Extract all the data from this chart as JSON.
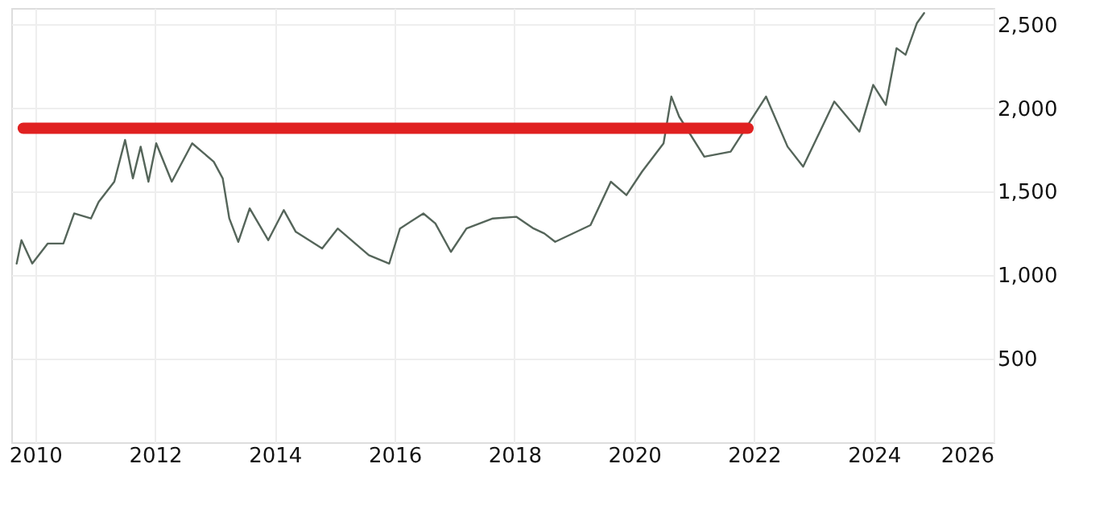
{
  "chart_data": {
    "type": "line",
    "grid": true,
    "xlim": [
      2009.6,
      2026
    ],
    "xticks": [
      2010,
      2012,
      2014,
      2016,
      2018,
      2020,
      2022,
      2024,
      2026
    ],
    "ylim": [
      0,
      2600
    ],
    "yticks": [
      500,
      {
        "value": 1000,
        "label": "1,000"
      },
      {
        "value": 1500,
        "label": "1,500"
      },
      {
        "value": 2000,
        "label": "2,000"
      },
      {
        "value": 2500,
        "label": "2,500"
      }
    ],
    "series": [
      {
        "color": "#55655a",
        "x": [
          2009.69,
          2009.77,
          2009.95,
          2010.21,
          2010.47,
          2010.65,
          2010.93,
          2011.06,
          2011.32,
          2011.5,
          2011.63,
          2011.76,
          2011.89,
          2012.02,
          2012.28,
          2012.62,
          2012.98,
          2013.13,
          2013.24,
          2013.39,
          2013.58,
          2013.89,
          2014.15,
          2014.35,
          2014.79,
          2015.05,
          2015.57,
          2015.91,
          2016.09,
          2016.48,
          2016.68,
          2016.94,
          2017.2,
          2017.64,
          2018.03,
          2018.32,
          2018.5,
          2018.68,
          2019.27,
          2019.61,
          2019.87,
          2020.13,
          2020.49,
          2020.62,
          2020.75,
          2021.17,
          2021.61,
          2022.2,
          2022.56,
          2022.82,
          2023.34,
          2023.76,
          2023.99,
          2024.2,
          2024.38,
          2024.53,
          2024.72,
          2024.84
        ],
        "values": [
          1070,
          1210,
          1070,
          1190,
          1190,
          1370,
          1340,
          1440,
          1560,
          1810,
          1580,
          1770,
          1560,
          1790,
          1560,
          1790,
          1680,
          1580,
          1340,
          1200,
          1400,
          1210,
          1390,
          1260,
          1160,
          1280,
          1120,
          1070,
          1280,
          1370,
          1310,
          1140,
          1280,
          1340,
          1350,
          1280,
          1250,
          1200,
          1300,
          1560,
          1480,
          1620,
          1790,
          2070,
          1950,
          1710,
          1740,
          2070,
          1770,
          1650,
          2040,
          1860,
          2140,
          2020,
          2360,
          2320,
          2510,
          2570
        ]
      },
      {
        "color": "#e02020",
        "x": [
          2009.8,
          2021.9
        ],
        "values": [
          1880,
          1880
        ]
      }
    ]
  }
}
